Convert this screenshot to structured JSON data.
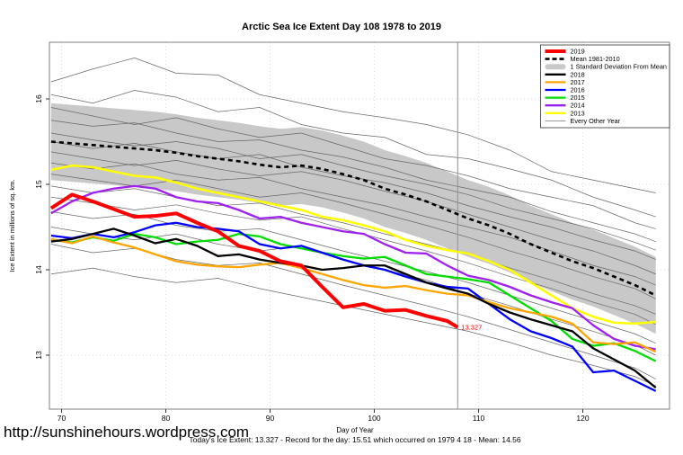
{
  "page": {
    "footer_url": "http://sunshinehours.wordpress.com",
    "footer_stats": "Today's Ice Extent: 13.327  - Record for the day: 15.51 which occurred on 1979 4 18  - Mean: 14.56"
  },
  "chart_data": {
    "type": "line",
    "title": "Arctic Sea Ice Extent Day 108 1978 to 2019",
    "xlabel": "Day of Year",
    "ylabel": "Ice Extent in millions of sq. km.",
    "xlim": [
      69,
      128
    ],
    "ylim": [
      12.37,
      16.66
    ],
    "xticks": [
      70,
      80,
      90,
      100,
      110,
      120
    ],
    "yticks": [
      13,
      14,
      15,
      16
    ],
    "grid": "dotted",
    "grid_color": "#dcdcdc",
    "border_color": "#808080",
    "vline_x": 108,
    "vline_color": "#909090",
    "annotation": {
      "text": "13.327",
      "x": 108,
      "y": 13.327,
      "color": "#FF0000"
    },
    "legend": {
      "position": "top-right",
      "entries": [
        {
          "label": "2019",
          "color": "#FF0000",
          "style": "thick"
        },
        {
          "label": "Mean 1981-2010",
          "color": "#000000",
          "style": "dashed"
        },
        {
          "label": "1 Standard Deviation From Mean",
          "color": "#C8C8C8",
          "style": "band"
        },
        {
          "label": "2018",
          "color": "#000000",
          "style": "line"
        },
        {
          "label": "2017",
          "color": "#FFA500",
          "style": "line"
        },
        {
          "label": "2016",
          "color": "#0000FF",
          "style": "line"
        },
        {
          "label": "2015",
          "color": "#00DD00",
          "style": "line"
        },
        {
          "label": "2014",
          "color": "#A020F0",
          "style": "line"
        },
        {
          "label": "2013",
          "color": "#FFFF00",
          "style": "line"
        },
        {
          "label": "Every Other Year",
          "color": "#777777",
          "style": "thin"
        }
      ]
    },
    "band": {
      "name": "1 Standard Deviation From Mean",
      "color": "#C8C8C8",
      "days": [
        69,
        71,
        73,
        75,
        77,
        79,
        81,
        83,
        85,
        87,
        89,
        91,
        93,
        95,
        97,
        99,
        101,
        103,
        105,
        107,
        109,
        111,
        113,
        115,
        117,
        119,
        121,
        123,
        125,
        127
      ],
      "top": [
        15.95,
        15.93,
        15.91,
        15.89,
        15.87,
        15.85,
        15.82,
        15.78,
        15.75,
        15.72,
        15.68,
        15.65,
        15.67,
        15.63,
        15.57,
        15.5,
        15.4,
        15.33,
        15.25,
        15.15,
        15.05,
        14.97,
        14.87,
        14.75,
        14.65,
        14.55,
        14.47,
        14.37,
        14.27,
        14.15
      ],
      "bottom": [
        15.05,
        15.03,
        15.01,
        14.99,
        14.97,
        14.95,
        14.92,
        14.88,
        14.85,
        14.82,
        14.78,
        14.75,
        14.77,
        14.73,
        14.67,
        14.6,
        14.5,
        14.43,
        14.35,
        14.25,
        14.15,
        14.07,
        13.97,
        13.85,
        13.75,
        13.65,
        13.57,
        13.47,
        13.37,
        13.25
      ]
    },
    "days_main": [
      69,
      71,
      73,
      75,
      77,
      79,
      81,
      83,
      85,
      87,
      89,
      91,
      93,
      95,
      97,
      99,
      101,
      103,
      105,
      107,
      109,
      111,
      113,
      115,
      117,
      119,
      121,
      123,
      125,
      127
    ],
    "series": [
      {
        "name": "Mean 1981-2010",
        "color": "#000000",
        "style": "dashed",
        "width": 2.6,
        "days": [
          69,
          71,
          73,
          75,
          77,
          79,
          81,
          83,
          85,
          87,
          89,
          91,
          93,
          95,
          97,
          99,
          101,
          103,
          105,
          107,
          109,
          111,
          113,
          115,
          117,
          119,
          121,
          123,
          125,
          127
        ],
        "values": [
          15.5,
          15.48,
          15.46,
          15.44,
          15.42,
          15.4,
          15.37,
          15.33,
          15.3,
          15.27,
          15.23,
          15.2,
          15.22,
          15.18,
          15.12,
          15.05,
          14.95,
          14.88,
          14.8,
          14.7,
          14.6,
          14.52,
          14.42,
          14.3,
          14.2,
          14.1,
          14.02,
          13.92,
          13.82,
          13.7
        ]
      },
      {
        "name": "2013",
        "color": "#FFFF00",
        "style": "line",
        "width": 2.5,
        "days": [
          69,
          71,
          73,
          75,
          77,
          79,
          81,
          83,
          85,
          87,
          89,
          91,
          93,
          95,
          97,
          99,
          101,
          103,
          105,
          107,
          109,
          111,
          113,
          115,
          117,
          119,
          121,
          123,
          125,
          127
        ],
        "values": [
          15.17,
          15.22,
          15.2,
          15.15,
          15.1,
          15.08,
          15.02,
          14.95,
          14.9,
          14.85,
          14.8,
          14.75,
          14.7,
          14.62,
          14.58,
          14.52,
          14.45,
          14.35,
          14.28,
          14.23,
          14.19,
          14.1,
          14.0,
          13.85,
          13.7,
          13.55,
          13.45,
          13.38,
          13.37,
          13.39
        ]
      },
      {
        "name": "2014",
        "color": "#A020F0",
        "style": "line",
        "width": 2.3,
        "days": [
          69,
          71,
          73,
          75,
          77,
          79,
          81,
          83,
          85,
          87,
          89,
          91,
          93,
          95,
          97,
          99,
          101,
          103,
          105,
          107,
          109,
          111,
          113,
          115,
          117,
          119,
          121,
          123,
          125,
          127
        ],
        "values": [
          14.66,
          14.8,
          14.9,
          14.95,
          14.98,
          14.95,
          14.85,
          14.8,
          14.78,
          14.7,
          14.6,
          14.62,
          14.55,
          14.5,
          14.45,
          14.42,
          14.3,
          14.2,
          14.19,
          14.05,
          13.93,
          13.88,
          13.8,
          13.7,
          13.62,
          13.55,
          13.35,
          13.19,
          13.11,
          13.07
        ]
      },
      {
        "name": "2015",
        "color": "#00DD00",
        "style": "line",
        "width": 2.3,
        "days": [
          69,
          71,
          73,
          75,
          77,
          79,
          81,
          83,
          85,
          87,
          89,
          91,
          93,
          95,
          97,
          99,
          101,
          103,
          105,
          107,
          109,
          111,
          113,
          115,
          117,
          119,
          121,
          123,
          125,
          127
        ],
        "values": [
          14.35,
          14.32,
          14.38,
          14.34,
          14.42,
          14.38,
          14.3,
          14.33,
          14.35,
          14.42,
          14.39,
          14.3,
          14.25,
          14.2,
          14.16,
          14.13,
          14.15,
          14.05,
          13.95,
          13.92,
          13.89,
          13.85,
          13.7,
          13.55,
          13.4,
          13.19,
          13.11,
          13.14,
          13.05,
          12.93
        ]
      },
      {
        "name": "2016",
        "color": "#0000FF",
        "style": "line",
        "width": 2.3,
        "days": [
          69,
          71,
          73,
          75,
          77,
          79,
          81,
          83,
          85,
          87,
          89,
          91,
          93,
          95,
          97,
          99,
          101,
          103,
          105,
          107,
          109,
          111,
          113,
          115,
          117,
          119,
          121,
          123,
          125,
          127
        ],
        "values": [
          14.4,
          14.37,
          14.42,
          14.38,
          14.44,
          14.52,
          14.55,
          14.5,
          14.48,
          14.45,
          14.3,
          14.25,
          14.28,
          14.2,
          14.12,
          14.05,
          14.0,
          13.92,
          13.85,
          13.8,
          13.78,
          13.6,
          13.42,
          13.28,
          13.2,
          13.1,
          12.8,
          12.82,
          12.7,
          12.58
        ]
      },
      {
        "name": "2017",
        "color": "#FFA500",
        "style": "line",
        "width": 2.3,
        "days": [
          69,
          71,
          73,
          75,
          77,
          79,
          81,
          83,
          85,
          87,
          89,
          91,
          93,
          95,
          97,
          99,
          101,
          103,
          105,
          107,
          109,
          111,
          113,
          115,
          117,
          119,
          121,
          123,
          125,
          127
        ],
        "values": [
          14.36,
          14.31,
          14.39,
          14.32,
          14.26,
          14.18,
          14.1,
          14.06,
          14.04,
          14.03,
          14.06,
          14.08,
          14.02,
          13.95,
          13.88,
          13.82,
          13.79,
          13.81,
          13.76,
          13.72,
          13.7,
          13.62,
          13.55,
          13.5,
          13.45,
          13.37,
          13.15,
          13.13,
          13.15,
          13.04
        ]
      },
      {
        "name": "2018",
        "color": "#000000",
        "style": "line",
        "width": 2.3,
        "days": [
          69,
          71,
          73,
          75,
          77,
          79,
          81,
          83,
          85,
          87,
          89,
          91,
          93,
          95,
          97,
          99,
          101,
          103,
          105,
          107,
          109,
          111,
          113,
          115,
          117,
          119,
          121,
          123,
          125,
          127
        ],
        "values": [
          14.33,
          14.36,
          14.42,
          14.48,
          14.4,
          14.31,
          14.36,
          14.28,
          14.16,
          14.18,
          14.12,
          14.08,
          14.05,
          14.0,
          14.02,
          14.05,
          14.05,
          13.95,
          13.85,
          13.78,
          13.72,
          13.6,
          13.5,
          13.42,
          13.35,
          13.28,
          13.08,
          12.95,
          12.82,
          12.62
        ]
      },
      {
        "name": "2019",
        "color": "#FF0000",
        "style": "thick",
        "width": 4,
        "days": [
          69,
          71,
          73,
          75,
          77,
          79,
          81,
          83,
          85,
          87,
          89,
          91,
          93,
          95,
          97,
          99,
          101,
          103,
          105,
          107,
          108
        ],
        "values": [
          14.72,
          14.88,
          14.8,
          14.71,
          14.62,
          14.63,
          14.66,
          14.55,
          14.45,
          14.28,
          14.22,
          14.1,
          14.05,
          13.8,
          13.56,
          13.6,
          13.52,
          13.53,
          13.46,
          13.4,
          13.327
        ]
      }
    ],
    "other_years": {
      "name": "Every Other Year",
      "color": "#666666",
      "days": [
        69,
        73,
        77,
        81,
        85,
        89,
        93,
        97,
        101,
        105,
        109,
        113,
        117,
        121,
        125,
        127
      ],
      "lines": [
        [
          16.2,
          16.35,
          16.48,
          16.3,
          16.28,
          16.05,
          15.95,
          15.85,
          15.78,
          15.7,
          15.58,
          15.4,
          15.15,
          15.05,
          14.95,
          14.9
        ],
        [
          16.05,
          15.95,
          16.1,
          16.02,
          15.85,
          15.9,
          15.7,
          15.6,
          15.55,
          15.35,
          15.3,
          15.18,
          15.05,
          14.85,
          14.7,
          14.62
        ],
        [
          15.9,
          15.8,
          15.7,
          15.78,
          15.65,
          15.55,
          15.6,
          15.45,
          15.3,
          15.22,
          15.1,
          14.95,
          14.85,
          14.75,
          14.55,
          14.48
        ],
        [
          15.75,
          15.68,
          15.72,
          15.6,
          15.5,
          15.52,
          15.4,
          15.32,
          15.2,
          15.05,
          14.95,
          14.85,
          14.68,
          14.55,
          14.42,
          14.33
        ],
        [
          15.6,
          15.52,
          15.45,
          15.5,
          15.42,
          15.3,
          15.35,
          15.22,
          15.1,
          15.0,
          14.88,
          14.72,
          14.6,
          14.48,
          14.32,
          14.23
        ],
        [
          15.5,
          15.42,
          15.48,
          15.38,
          15.3,
          15.35,
          15.2,
          15.1,
          15.02,
          14.9,
          14.75,
          14.62,
          14.5,
          14.35,
          14.22,
          14.12
        ],
        [
          15.38,
          15.3,
          15.22,
          15.28,
          15.18,
          15.1,
          15.15,
          15.05,
          14.92,
          14.8,
          14.65,
          14.5,
          14.35,
          14.22,
          14.05,
          13.95
        ],
        [
          15.25,
          15.18,
          15.24,
          15.12,
          15.05,
          15.08,
          14.95,
          14.85,
          14.75,
          14.62,
          14.5,
          14.38,
          14.22,
          14.05,
          13.92,
          13.82
        ],
        [
          15.12,
          15.05,
          14.98,
          15.05,
          14.95,
          14.85,
          14.9,
          14.78,
          14.65,
          14.52,
          14.38,
          14.22,
          14.08,
          13.92,
          13.78,
          13.66
        ],
        [
          14.98,
          14.9,
          14.95,
          14.85,
          14.75,
          14.78,
          14.65,
          14.55,
          14.42,
          14.3,
          14.18,
          14.02,
          13.88,
          13.72,
          13.58,
          13.48
        ],
        [
          14.85,
          14.78,
          14.7,
          14.76,
          14.66,
          14.58,
          14.62,
          14.48,
          14.35,
          14.22,
          14.08,
          13.92,
          13.78,
          13.62,
          13.48,
          13.36
        ],
        [
          14.68,
          14.6,
          14.65,
          14.52,
          14.45,
          14.48,
          14.35,
          14.22,
          14.1,
          13.98,
          13.85,
          13.7,
          13.55,
          13.4,
          13.25,
          13.14
        ],
        [
          14.5,
          14.42,
          14.35,
          14.42,
          14.3,
          14.22,
          14.28,
          14.12,
          14.0,
          13.88,
          13.72,
          13.58,
          13.42,
          13.28,
          13.12,
          13.0
        ],
        [
          14.3,
          14.2,
          14.25,
          14.12,
          14.05,
          14.08,
          13.95,
          13.82,
          13.7,
          13.58,
          13.45,
          13.3,
          13.15,
          13.0,
          12.85,
          12.72
        ],
        [
          13.95,
          14.02,
          13.92,
          13.85,
          13.9,
          13.78,
          13.68,
          13.58,
          13.48,
          13.38,
          13.28,
          13.15,
          13.0,
          12.88,
          12.75,
          12.64
        ]
      ]
    }
  }
}
